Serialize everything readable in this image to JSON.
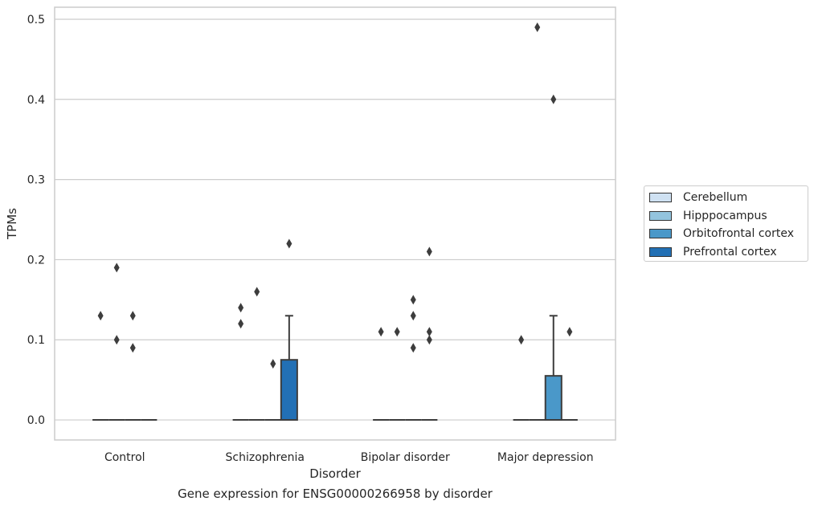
{
  "caption": "Gene expression for ENSG00000266958 by disorder",
  "chart_data": {
    "type": "box",
    "xlabel": "Disorder",
    "ylabel": "TPMs",
    "ylim": [
      -0.025,
      0.515
    ],
    "yticks": [
      0.0,
      0.1,
      0.2,
      0.3,
      0.4,
      0.5
    ],
    "ytick_labels": [
      "0.0",
      "0.1",
      "0.2",
      "0.3",
      "0.4",
      "0.5"
    ],
    "grid": "horizontal",
    "legend_position": "right",
    "categories": [
      "Control",
      "Schizophrenia",
      "Bipolar disorder",
      "Major depression"
    ],
    "series": [
      {
        "name": "Cerebellum",
        "color": "#cfe1f2",
        "boxes": [
          {
            "category": "Control",
            "q1": 0,
            "median": 0,
            "q3": 0,
            "whisker_low": 0,
            "whisker_high": 0,
            "outliers": [
              0.13
            ]
          },
          {
            "category": "Schizophrenia",
            "q1": 0,
            "median": 0,
            "q3": 0,
            "whisker_low": 0,
            "whisker_high": 0,
            "outliers": [
              0.14,
              0.12
            ]
          },
          {
            "category": "Bipolar disorder",
            "q1": 0,
            "median": 0,
            "q3": 0,
            "whisker_low": 0,
            "whisker_high": 0,
            "outliers": [
              0.11
            ]
          },
          {
            "category": "Major depression",
            "q1": 0,
            "median": 0,
            "q3": 0,
            "whisker_low": 0,
            "whisker_high": 0,
            "outliers": [
              0.1
            ]
          }
        ]
      },
      {
        "name": "Hipppocampus",
        "color": "#93c4de",
        "boxes": [
          {
            "category": "Control",
            "q1": 0,
            "median": 0,
            "q3": 0,
            "whisker_low": 0,
            "whisker_high": 0,
            "outliers": [
              0.19,
              0.1
            ]
          },
          {
            "category": "Schizophrenia",
            "q1": 0,
            "median": 0,
            "q3": 0,
            "whisker_low": 0,
            "whisker_high": 0,
            "outliers": [
              0.16
            ]
          },
          {
            "category": "Bipolar disorder",
            "q1": 0,
            "median": 0,
            "q3": 0,
            "whisker_low": 0,
            "whisker_high": 0,
            "outliers": [
              0.11
            ]
          },
          {
            "category": "Major depression",
            "q1": 0,
            "median": 0,
            "q3": 0,
            "whisker_low": 0,
            "whisker_high": 0,
            "outliers": [
              0.49
            ]
          }
        ]
      },
      {
        "name": "Orbitofrontal cortex",
        "color": "#4a98c9",
        "boxes": [
          {
            "category": "Control",
            "q1": 0,
            "median": 0,
            "q3": 0,
            "whisker_low": 0,
            "whisker_high": 0,
            "outliers": [
              0.13,
              0.09
            ]
          },
          {
            "category": "Schizophrenia",
            "q1": 0,
            "median": 0,
            "q3": 0,
            "whisker_low": 0,
            "whisker_high": 0,
            "outliers": [
              0.07
            ]
          },
          {
            "category": "Bipolar disorder",
            "q1": 0,
            "median": 0,
            "q3": 0,
            "whisker_low": 0,
            "whisker_high": 0,
            "outliers": [
              0.15,
              0.13,
              0.09
            ]
          },
          {
            "category": "Major depression",
            "q1": 0,
            "median": 0,
            "q3": 0.055,
            "whisker_low": 0,
            "whisker_high": 0.13,
            "outliers": [
              0.4
            ]
          }
        ]
      },
      {
        "name": "Prefrontal cortex",
        "color": "#2270b5",
        "boxes": [
          {
            "category": "Control",
            "q1": 0,
            "median": 0,
            "q3": 0,
            "whisker_low": 0,
            "whisker_high": 0,
            "outliers": []
          },
          {
            "category": "Schizophrenia",
            "q1": 0,
            "median": 0,
            "q3": 0.075,
            "whisker_low": 0,
            "whisker_high": 0.13,
            "outliers": [
              0.22
            ]
          },
          {
            "category": "Bipolar disorder",
            "q1": 0,
            "median": 0,
            "q3": 0,
            "whisker_low": 0,
            "whisker_high": 0,
            "outliers": [
              0.21,
              0.11,
              0.1
            ]
          },
          {
            "category": "Major depression",
            "q1": 0,
            "median": 0,
            "q3": 0,
            "whisker_low": 0,
            "whisker_high": 0,
            "outliers": [
              0.11
            ]
          }
        ]
      }
    ]
  }
}
